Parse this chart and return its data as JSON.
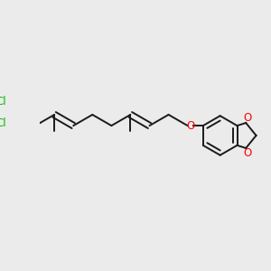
{
  "bg_color": "#ebebeb",
  "bond_color": "#1a1a1a",
  "cl_color": "#00bb00",
  "o_color": "#ff0000",
  "line_width": 1.4,
  "font_size": 8.5,
  "dbo": 0.008,
  "figsize": [
    3.0,
    3.0
  ],
  "dpi": 100,
  "xlim": [
    0,
    10
  ],
  "ylim": [
    0,
    10
  ]
}
